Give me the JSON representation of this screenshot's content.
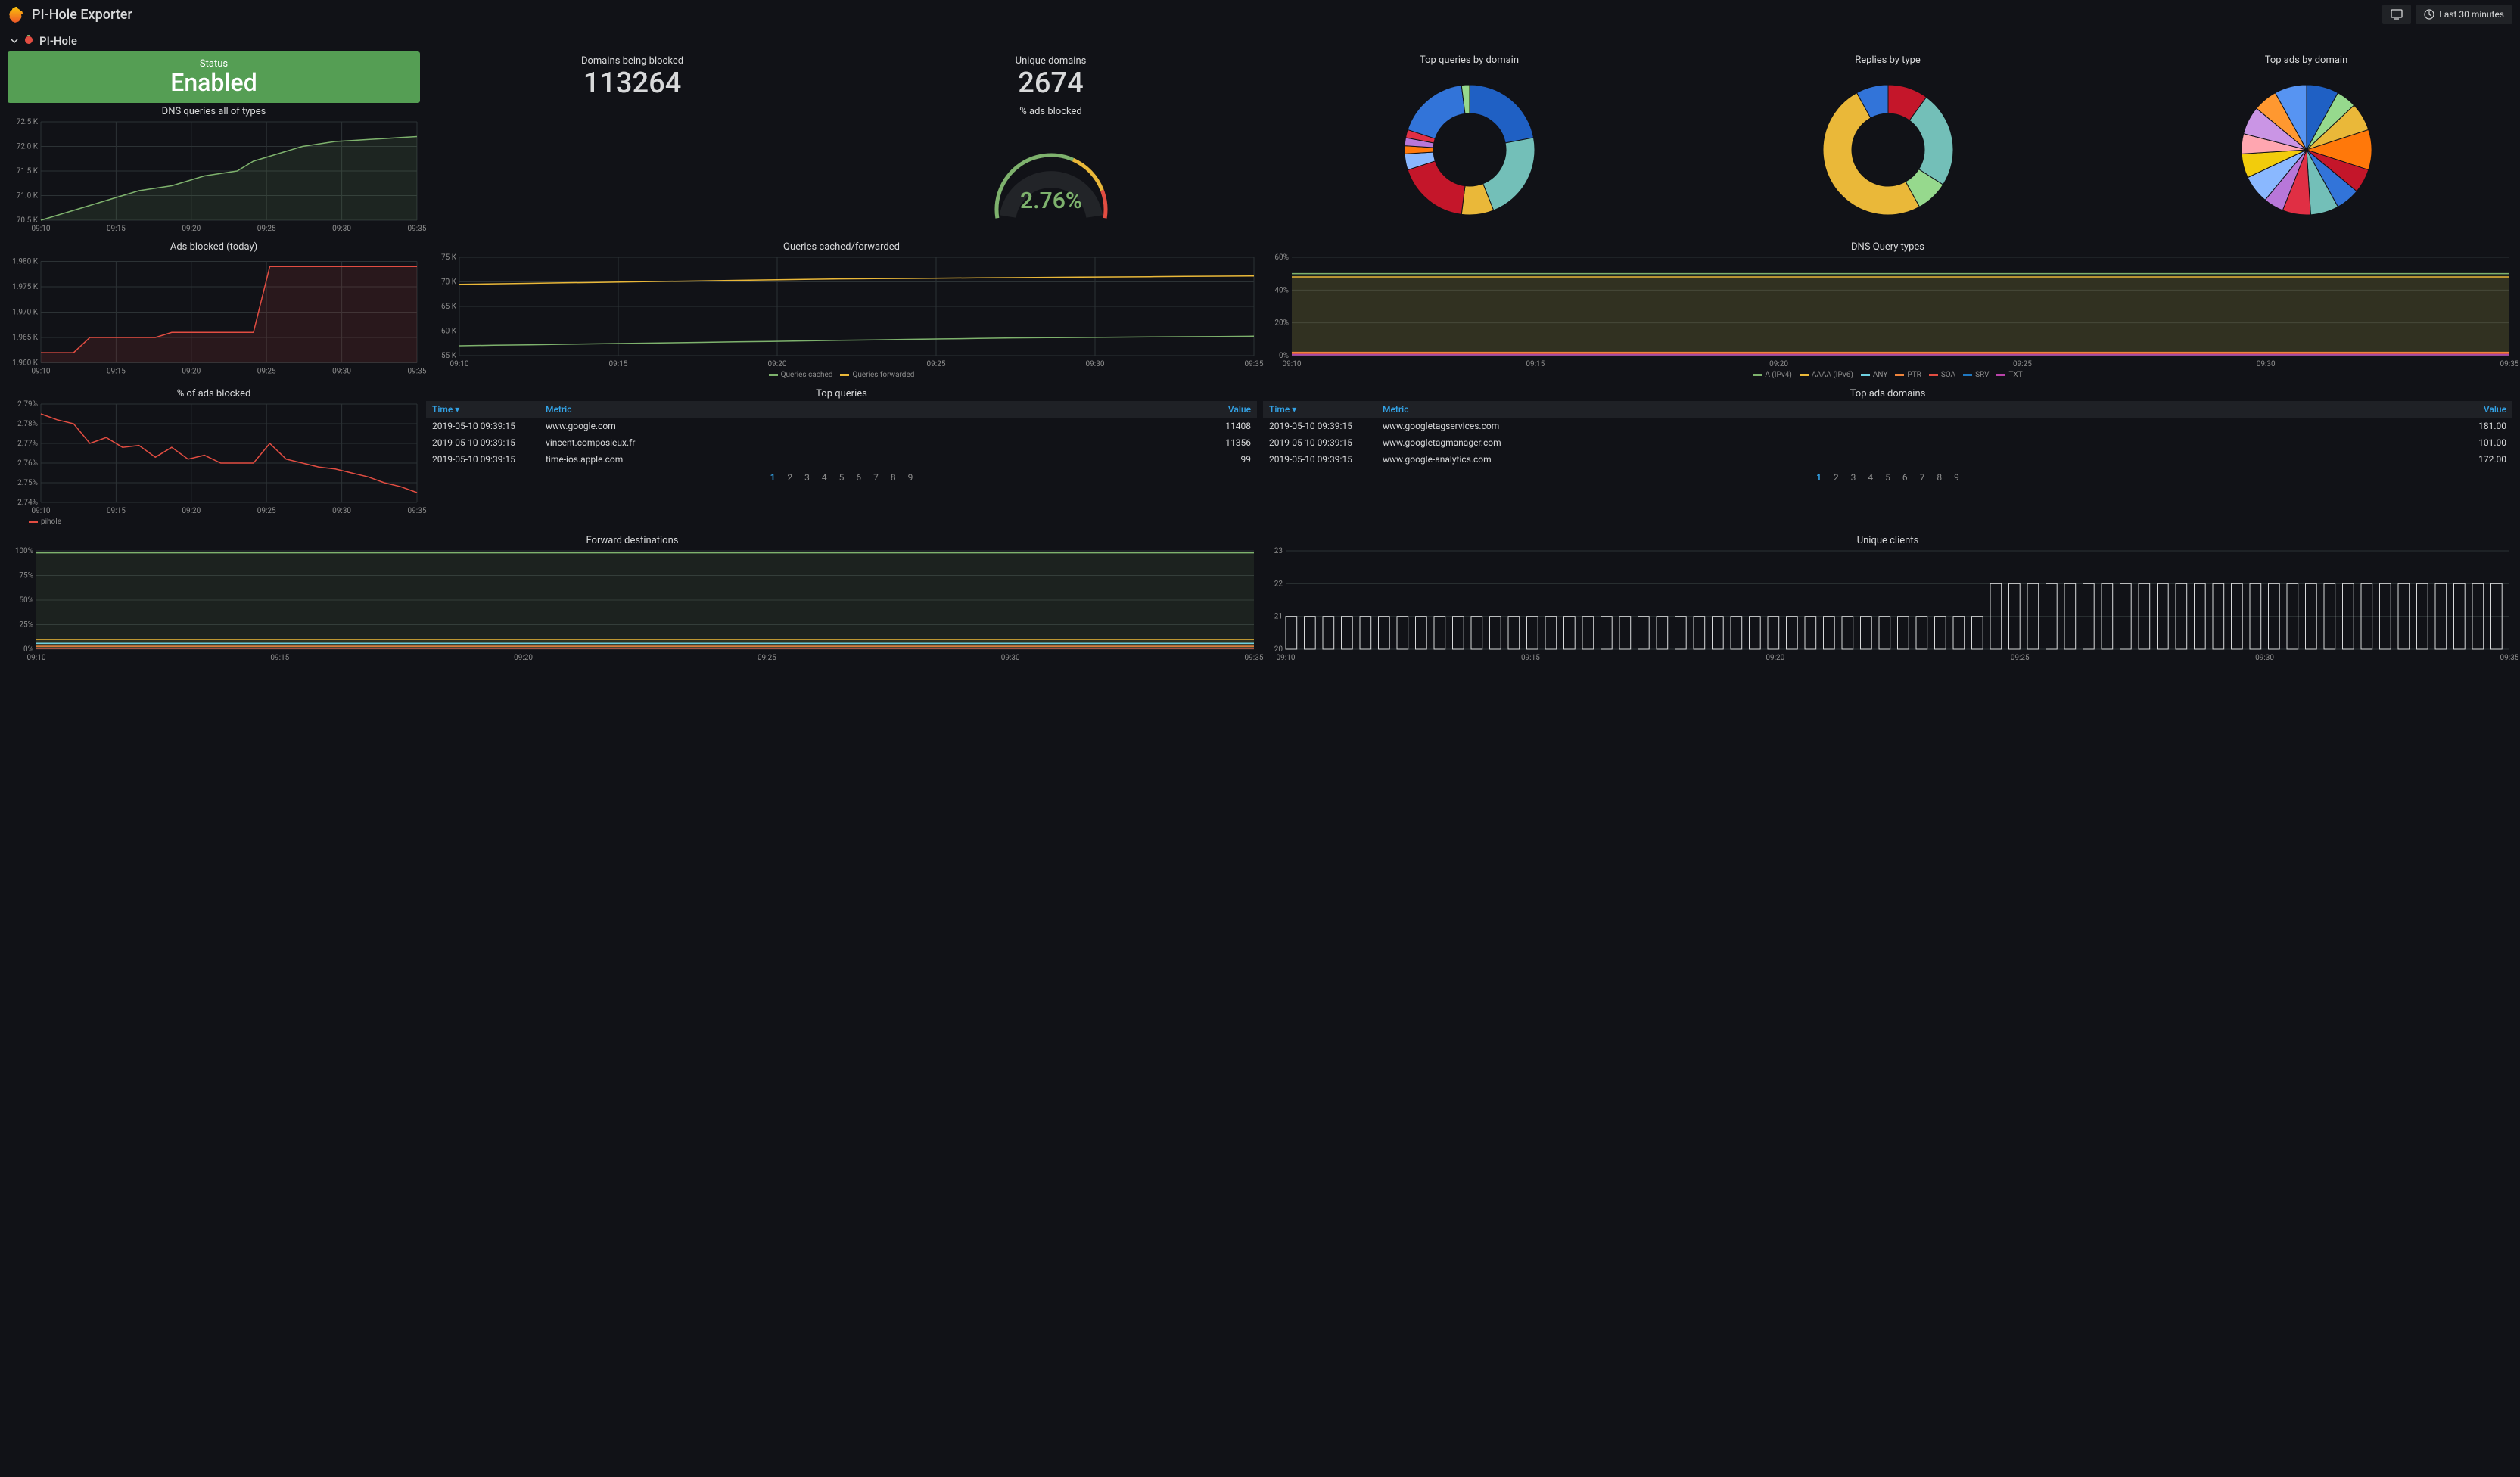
{
  "header": {
    "title": "PI-Hole Exporter",
    "time_range": "Last 30 minutes"
  },
  "row": {
    "title": "PI-Hole"
  },
  "status": {
    "label": "Status",
    "value": "Enabled",
    "bg": "#559e54"
  },
  "domains_blocked": {
    "label": "Domains being blocked",
    "value": "113264"
  },
  "unique_domains": {
    "label": "Unique domains",
    "value": "2674"
  },
  "time_axis": {
    "labels": [
      "09:10",
      "09:15",
      "09:20",
      "09:25",
      "09:30",
      "09:35"
    ]
  },
  "dns_queries": {
    "title": "DNS queries all of types",
    "yticks": [
      "70.5 K",
      "71.0 K",
      "71.5 K",
      "72.0 K",
      "72.5 K"
    ],
    "ymin": 70500,
    "ymax": 72500,
    "color": "#7eb26d",
    "data": [
      70500,
      70600,
      70700,
      70800,
      70900,
      71000,
      71100,
      71150,
      71200,
      71300,
      71400,
      71450,
      71500,
      71700,
      71800,
      71900,
      72000,
      72050,
      72100,
      72120,
      72140,
      72160,
      72180,
      72200
    ]
  },
  "ads_blocked_pct_panel": {
    "title": "% ads blocked",
    "value": "2.76%",
    "arc_colors": [
      "#7eb26d",
      "#eab839",
      "#e24d42"
    ],
    "arc_stops": [
      0.62,
      0.85,
      1.0
    ]
  },
  "donut_top_queries": {
    "title": "Top queries by domain",
    "type": "donut",
    "slices": [
      {
        "v": 22,
        "c": "#1f60c4"
      },
      {
        "v": 22,
        "c": "#73bfb8"
      },
      {
        "v": 8,
        "c": "#eab839"
      },
      {
        "v": 18,
        "c": "#c4162a"
      },
      {
        "v": 4,
        "c": "#8ab8ff"
      },
      {
        "v": 2,
        "c": "#ff780a"
      },
      {
        "v": 2,
        "c": "#b877d9"
      },
      {
        "v": 2,
        "c": "#e02f44"
      },
      {
        "v": 18,
        "c": "#3274d9"
      },
      {
        "v": 2,
        "c": "#96d98d"
      }
    ]
  },
  "donut_replies": {
    "title": "Replies by type",
    "type": "donut",
    "slices": [
      {
        "v": 10,
        "c": "#c4162a"
      },
      {
        "v": 24,
        "c": "#73bfb8"
      },
      {
        "v": 8,
        "c": "#96d98d"
      },
      {
        "v": 50,
        "c": "#eab839"
      },
      {
        "v": 8,
        "c": "#3274d9"
      }
    ]
  },
  "pie_top_ads": {
    "title": "Top ads by domain",
    "type": "pie",
    "slices": [
      {
        "v": 8,
        "c": "#1f60c4"
      },
      {
        "v": 5,
        "c": "#96d98d"
      },
      {
        "v": 7,
        "c": "#eab839"
      },
      {
        "v": 10,
        "c": "#ff780a"
      },
      {
        "v": 6,
        "c": "#c4162a"
      },
      {
        "v": 6,
        "c": "#3274d9"
      },
      {
        "v": 7,
        "c": "#73bfb8"
      },
      {
        "v": 7,
        "c": "#e02f44"
      },
      {
        "v": 5,
        "c": "#b877d9"
      },
      {
        "v": 7,
        "c": "#8ab8ff"
      },
      {
        "v": 6,
        "c": "#f2cc0c"
      },
      {
        "v": 5,
        "c": "#ffa6b0"
      },
      {
        "v": 7,
        "c": "#ca95e5"
      },
      {
        "v": 6,
        "c": "#ff9830"
      },
      {
        "v": 8,
        "c": "#5794f2"
      }
    ]
  },
  "ads_blocked_today": {
    "title": "Ads blocked (today)",
    "color": "#e24d42",
    "yticks": [
      "1.960 K",
      "1.965 K",
      "1.970 K",
      "1.975 K",
      "1.980 K"
    ],
    "ymin": 1960,
    "ymax": 1980,
    "data": [
      1962,
      1962,
      1962,
      1965,
      1965,
      1965,
      1965,
      1965,
      1966,
      1966,
      1966,
      1966,
      1966,
      1966,
      1979,
      1979,
      1979,
      1979,
      1979,
      1979,
      1979,
      1979,
      1979,
      1979
    ]
  },
  "queries_cf": {
    "title": "Queries cached/forwarded",
    "yticks": [
      "55 K",
      "60 K",
      "65 K",
      "70 K",
      "75 K"
    ],
    "ymin": 55000,
    "ymax": 75000,
    "series": [
      {
        "name": "Queries cached",
        "color": "#7eb26d",
        "data": [
          57000,
          57100,
          57200,
          57300,
          57400,
          57500,
          57600,
          57700,
          57800,
          57900,
          58000,
          58100,
          58200,
          58300,
          58400,
          58500,
          58600,
          58650,
          58700,
          58750,
          58800,
          58850,
          58900,
          58950
        ]
      },
      {
        "name": "Queries forwarded",
        "color": "#eab839",
        "data": [
          69500,
          69600,
          69700,
          69800,
          69900,
          70000,
          70100,
          70200,
          70300,
          70400,
          70500,
          70600,
          70650,
          70700,
          70750,
          70800,
          70850,
          70900,
          70950,
          71000,
          71050,
          71100,
          71150,
          71200
        ]
      }
    ],
    "legend": [
      {
        "label": "Queries cached",
        "c": "#7eb26d"
      },
      {
        "label": "Queries forwarded",
        "c": "#eab839"
      }
    ]
  },
  "dns_qtypes": {
    "title": "DNS Query types",
    "yticks": [
      "0%",
      "20%",
      "40%",
      "60%"
    ],
    "ymin": 0,
    "ymax": 60,
    "series": [
      {
        "color": "#7eb26d",
        "data": 50
      },
      {
        "color": "#eab839",
        "data": 48
      },
      {
        "color": "#6ed0e0",
        "data": 1
      },
      {
        "color": "#ef843c",
        "data": 2
      },
      {
        "color": "#e24d42",
        "data": 1
      },
      {
        "color": "#1f78c1",
        "data": 0.5
      },
      {
        "color": "#ba43a9",
        "data": 0.5
      }
    ],
    "legend": [
      {
        "label": "A (IPv4)",
        "c": "#7eb26d"
      },
      {
        "label": "AAAA (IPv6)",
        "c": "#eab839"
      },
      {
        "label": "ANY",
        "c": "#6ed0e0"
      },
      {
        "label": "PTR",
        "c": "#ef843c"
      },
      {
        "label": "SOA",
        "c": "#e24d42"
      },
      {
        "label": "SRV",
        "c": "#1f78c1"
      },
      {
        "label": "TXT",
        "c": "#ba43a9"
      }
    ]
  },
  "pct_ads_blocked": {
    "title": "% of ads blocked",
    "color": "#e24d42",
    "yticks": [
      "2.74%",
      "2.75%",
      "2.76%",
      "2.77%",
      "2.78%",
      "2.79%"
    ],
    "ymin": 2.74,
    "ymax": 2.79,
    "data": [
      2.785,
      2.782,
      2.78,
      2.77,
      2.773,
      2.768,
      2.769,
      2.763,
      2.768,
      2.762,
      2.764,
      2.76,
      2.76,
      2.76,
      2.77,
      2.762,
      2.76,
      2.758,
      2.757,
      2.755,
      2.753,
      2.75,
      2.748,
      2.745
    ],
    "legend": [
      {
        "label": "pihole",
        "c": "#e24d42"
      }
    ]
  },
  "top_queries_table": {
    "title": "Top queries",
    "cols": {
      "time": "Time",
      "metric": "Metric",
      "value": "Value"
    },
    "rows": [
      {
        "t": "2019-05-10 09:39:15",
        "m": "www.google.com",
        "v": "11408"
      },
      {
        "t": "2019-05-10 09:39:15",
        "m": "vincent.composieux.fr",
        "v": "11356"
      },
      {
        "t": "2019-05-10 09:39:15",
        "m": "time-ios.apple.com",
        "v": "99"
      }
    ],
    "pages": [
      "1",
      "2",
      "3",
      "4",
      "5",
      "6",
      "7",
      "8",
      "9"
    ]
  },
  "top_ads_table": {
    "title": "Top ads domains",
    "cols": {
      "time": "Time",
      "metric": "Metric",
      "value": "Value"
    },
    "rows": [
      {
        "t": "2019-05-10 09:39:15",
        "m": "www.googletagservices.com",
        "v": "181.00"
      },
      {
        "t": "2019-05-10 09:39:15",
        "m": "www.googletagmanager.com",
        "v": "101.00"
      },
      {
        "t": "2019-05-10 09:39:15",
        "m": "www.google-analytics.com",
        "v": "172.00"
      }
    ],
    "pages": [
      "1",
      "2",
      "3",
      "4",
      "5",
      "6",
      "7",
      "8",
      "9"
    ]
  },
  "forward_dest": {
    "title": "Forward destinations",
    "yticks": [
      "0%",
      "25%",
      "50%",
      "75%",
      "100%"
    ],
    "ymin": 0,
    "ymax": 100,
    "series": [
      {
        "color": "#7eb26d",
        "data": 98
      },
      {
        "color": "#eab839",
        "data": 10
      },
      {
        "color": "#6ed0e0",
        "data": 6
      },
      {
        "color": "#ef843c",
        "data": 3
      },
      {
        "color": "#e24d42",
        "data": 1
      }
    ]
  },
  "unique_clients": {
    "title": "Unique clients",
    "yticks": [
      "20",
      "21",
      "22",
      "23"
    ],
    "ymin": 20,
    "ymax": 23,
    "color": "#d8d9da",
    "data": [
      21,
      21,
      21,
      21,
      21,
      21,
      21,
      21,
      21,
      21,
      21,
      21,
      21,
      21,
      21,
      21,
      21,
      21,
      21,
      21,
      21,
      21,
      21,
      21,
      21,
      21,
      21,
      21,
      21,
      21,
      21,
      21,
      21,
      21,
      21,
      21,
      21,
      21,
      22,
      22,
      22,
      22,
      22,
      22,
      22,
      22,
      22,
      22,
      22,
      22,
      22,
      22,
      22,
      22,
      22,
      22,
      22,
      22,
      22,
      22,
      22,
      22,
      22,
      22,
      22,
      22
    ]
  },
  "colors": {
    "bg": "#111217",
    "panel_title": "#d8d9da",
    "axis": "#8e8e8e",
    "grid": "#2c3235",
    "link": "#33a2e5"
  }
}
